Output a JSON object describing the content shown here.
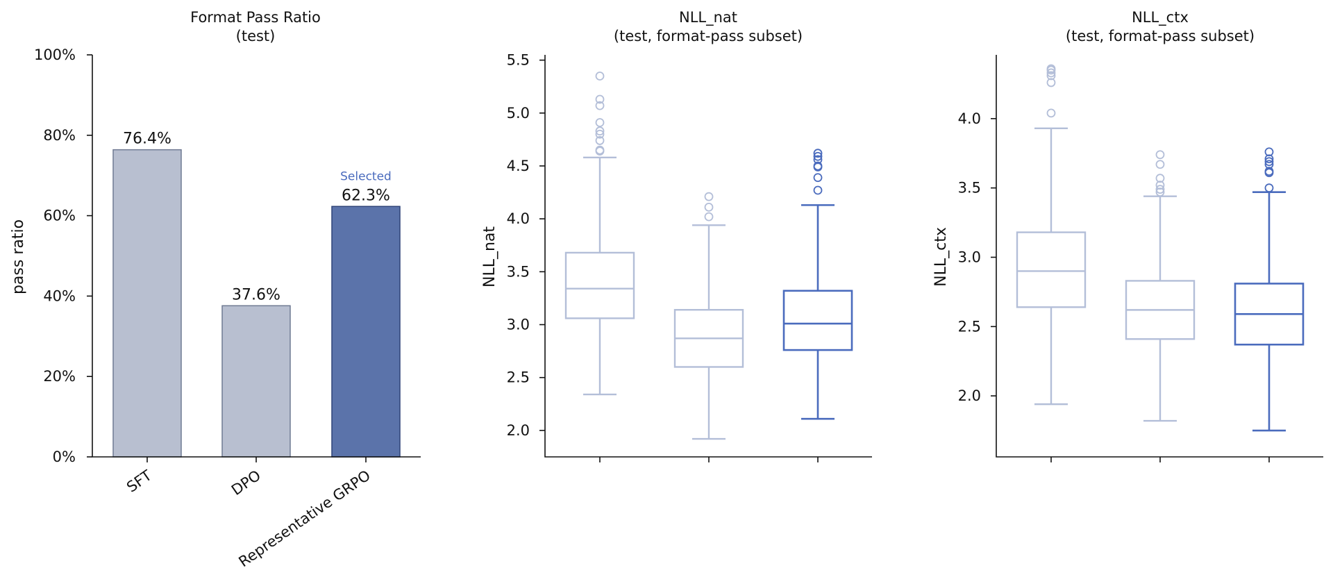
{
  "colors": {
    "muted": "#b8bfd0",
    "muted_edge": "#6f7a92",
    "accent": "#5b73aa",
    "accent_edge": "#2f4478",
    "box_muted": "#b3bed8",
    "box_accent": "#4a6bbd",
    "note": "#4a6bbd"
  },
  "chart_data": [
    {
      "type": "bar",
      "title": "Format Pass Ratio",
      "subtitle": "(test)",
      "ylabel": "pass ratio",
      "ylim": [
        0,
        100
      ],
      "yticks": [
        "0%",
        "20%",
        "40%",
        "60%",
        "80%",
        "100%"
      ],
      "categories": [
        "SFT",
        "DPO",
        "Representative GRPO"
      ],
      "values": [
        76.4,
        37.6,
        62.3
      ],
      "value_labels": [
        "76.4%",
        "37.6%",
        "62.3%"
      ],
      "highlight_index": 2,
      "annotation": "Selected"
    },
    {
      "type": "box",
      "title": "NLL_nat",
      "subtitle": "(test, format-pass subset)",
      "ylabel": "NLL_nat",
      "ylim": [
        1.75,
        5.55
      ],
      "yticks": [
        "2.0",
        "2.5",
        "3.0",
        "3.5",
        "4.0",
        "4.5",
        "5.0",
        "5.5"
      ],
      "highlight_index": 2,
      "boxes": [
        {
          "whisker_low": 2.34,
          "q1": 3.06,
          "median": 3.34,
          "q3": 3.68,
          "whisker_high": 4.58,
          "outliers": [
            4.64,
            4.65,
            4.74,
            4.8,
            4.83,
            4.91,
            5.07,
            5.13,
            5.35
          ]
        },
        {
          "whisker_low": 1.92,
          "q1": 2.6,
          "median": 2.87,
          "q3": 3.14,
          "whisker_high": 3.94,
          "outliers": [
            4.02,
            4.11,
            4.21
          ]
        },
        {
          "whisker_low": 2.11,
          "q1": 2.76,
          "median": 3.01,
          "q3": 3.32,
          "whisker_high": 4.13,
          "outliers": [
            4.27,
            4.39,
            4.49,
            4.5,
            4.56,
            4.59,
            4.62
          ]
        }
      ]
    },
    {
      "type": "box",
      "title": "NLL_ctx",
      "subtitle": "(test, format-pass subset)",
      "ylabel": "NLL_ctx",
      "ylim": [
        1.56,
        4.46
      ],
      "yticks": [
        "2.0",
        "2.5",
        "3.0",
        "3.5",
        "4.0"
      ],
      "highlight_index": 2,
      "boxes": [
        {
          "whisker_low": 1.94,
          "q1": 2.64,
          "median": 2.9,
          "q3": 3.18,
          "whisker_high": 3.93,
          "outliers": [
            4.04,
            4.26,
            4.31,
            4.33,
            4.35,
            4.36
          ]
        },
        {
          "whisker_low": 1.82,
          "q1": 2.41,
          "median": 2.62,
          "q3": 2.83,
          "whisker_high": 3.44,
          "outliers": [
            3.47,
            3.49,
            3.52,
            3.57,
            3.67,
            3.74
          ]
        },
        {
          "whisker_low": 1.75,
          "q1": 2.37,
          "median": 2.59,
          "q3": 2.81,
          "whisker_high": 3.47,
          "outliers": [
            3.5,
            3.61,
            3.62,
            3.67,
            3.69,
            3.71,
            3.76
          ]
        }
      ]
    }
  ]
}
